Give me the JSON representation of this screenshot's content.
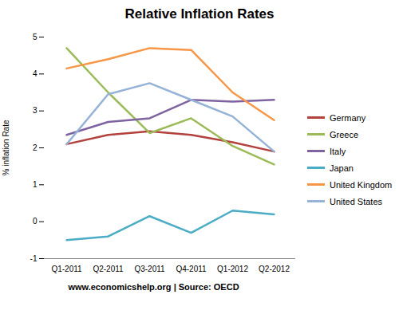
{
  "chart_data": {
    "type": "line",
    "title": "Relative Inflation Rates",
    "y_label": "% inflation Rate",
    "caption": "www.economicshelp.org | Source: OECD",
    "categories": [
      "Q1-2011",
      "Q2-2011",
      "Q3-2011",
      "Q4-2011",
      "Q1-2012",
      "Q2-2012"
    ],
    "series": [
      {
        "name": "Germany",
        "color": "#b3413d",
        "values": [
          2.1,
          2.35,
          2.45,
          2.35,
          2.15,
          1.9
        ]
      },
      {
        "name": "Greece",
        "color": "#9bbb59",
        "values": [
          4.7,
          3.5,
          2.4,
          2.8,
          2.05,
          1.55
        ]
      },
      {
        "name": "Italy",
        "color": "#7f63a1",
        "values": [
          2.35,
          2.7,
          2.8,
          3.3,
          3.25,
          3.3
        ]
      },
      {
        "name": "Japan",
        "color": "#4bacc6",
        "values": [
          -0.5,
          -0.4,
          0.15,
          -0.3,
          0.3,
          0.2
        ]
      },
      {
        "name": "United Kingdom",
        "color": "#f79646",
        "values": [
          4.15,
          4.4,
          4.7,
          4.65,
          3.5,
          2.75
        ]
      },
      {
        "name": "United States",
        "color": "#95b3d7",
        "values": [
          2.1,
          3.45,
          3.75,
          3.3,
          2.85,
          1.9
        ]
      }
    ],
    "ylim": [
      -1,
      5
    ],
    "yticks": [
      -1,
      0,
      1,
      2,
      3,
      4,
      5
    ],
    "grid": false,
    "legend": "right"
  }
}
